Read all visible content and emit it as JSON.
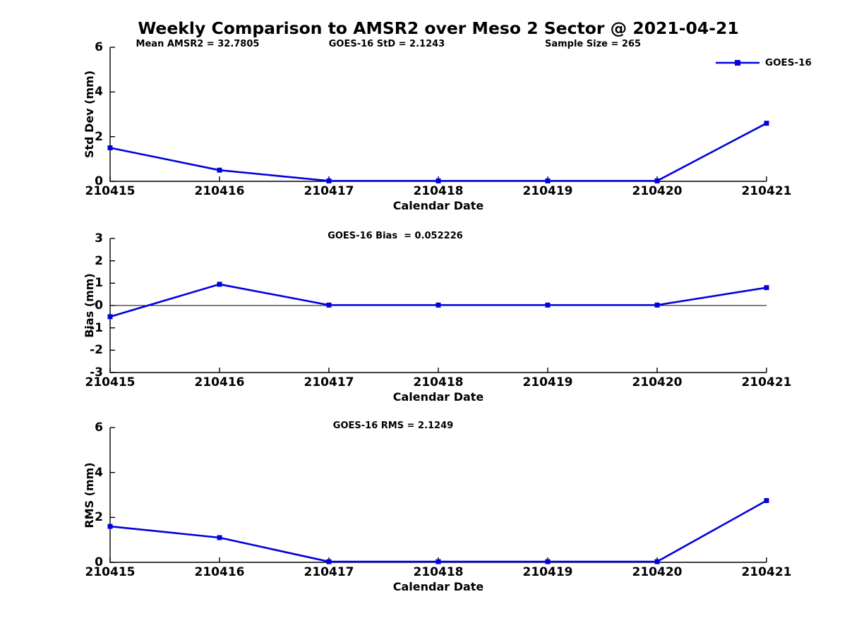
{
  "title": "Weekly Comparison to AMSR2 over Meso 2 Sector @ 2021-04-21",
  "header_stats": {
    "mean": "Mean AMSR2 = 32.7805",
    "std": "GOES-16 StD = 2.1243",
    "sample": "Sample Size = 265"
  },
  "legend": {
    "label": "GOES-16",
    "color": "#0000dd",
    "marker": "square",
    "position": "top-right-outside"
  },
  "colors": {
    "line": "#0000dd",
    "axis": "#000000",
    "background": "#ffffff",
    "text": "#000000"
  },
  "chart_data": [
    {
      "type": "line",
      "id": "std-dev",
      "ylabel": "Std Dev (mm)",
      "xlabel": "Calendar Date",
      "annotation": "",
      "categories": [
        "210415",
        "210416",
        "210417",
        "210418",
        "210419",
        "210420",
        "210421"
      ],
      "series": [
        {
          "name": "GOES-16",
          "color": "#0000dd",
          "marker": "square",
          "values": [
            1.5,
            0.5,
            0.02,
            0.02,
            0.02,
            0.02,
            2.6
          ]
        }
      ],
      "ylim": [
        0,
        6
      ],
      "yticks": [
        0,
        2,
        4,
        6
      ],
      "zero_line": false,
      "grid": false
    },
    {
      "type": "line",
      "id": "bias",
      "ylabel": "Bias (mm)",
      "xlabel": "Calendar Date",
      "annotation": "GOES-16 Bias  = 0.052226",
      "categories": [
        "210415",
        "210416",
        "210417",
        "210418",
        "210419",
        "210420",
        "210421"
      ],
      "series": [
        {
          "name": "GOES-16",
          "color": "#0000dd",
          "marker": "square",
          "values": [
            -0.5,
            0.95,
            0.02,
            0.02,
            0.02,
            0.02,
            0.8
          ]
        }
      ],
      "ylim": [
        -3,
        3
      ],
      "yticks": [
        -3,
        -2,
        -1,
        0,
        1,
        2,
        3
      ],
      "zero_line": true,
      "grid": false
    },
    {
      "type": "line",
      "id": "rms",
      "ylabel": "RMS (mm)",
      "xlabel": "Calendar Date",
      "annotation": "GOES-16 RMS = 2.1249",
      "categories": [
        "210415",
        "210416",
        "210417",
        "210418",
        "210419",
        "210420",
        "210421"
      ],
      "series": [
        {
          "name": "GOES-16",
          "color": "#0000dd",
          "marker": "square",
          "values": [
            1.6,
            1.1,
            0.03,
            0.03,
            0.03,
            0.03,
            2.75
          ]
        }
      ],
      "ylim": [
        0,
        6
      ],
      "yticks": [
        0,
        2,
        4,
        6
      ],
      "zero_line": false,
      "grid": false
    }
  ]
}
